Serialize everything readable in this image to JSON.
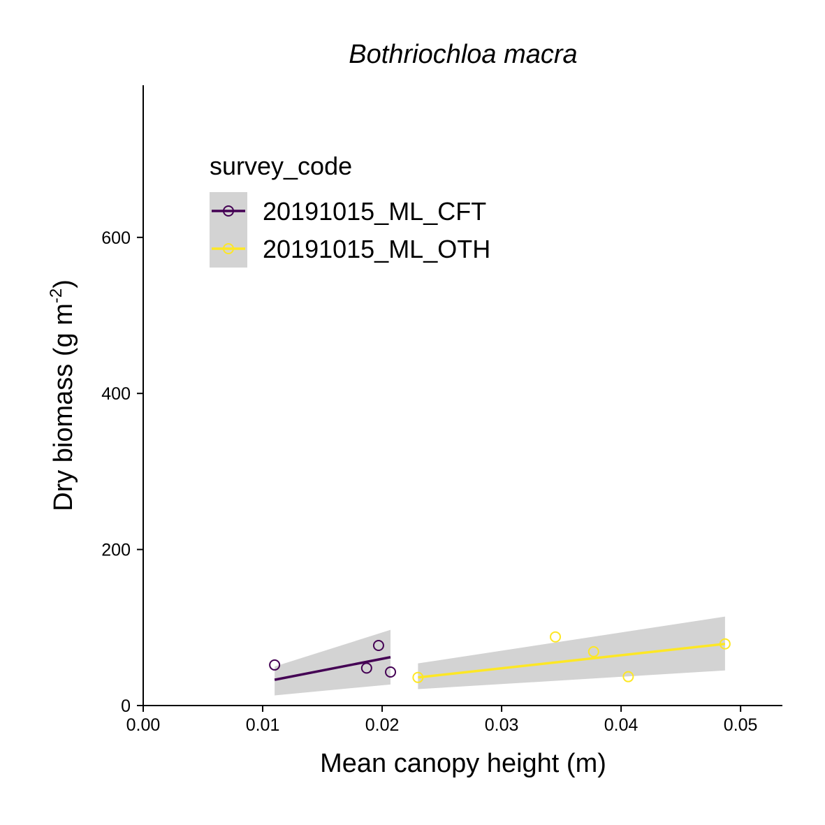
{
  "chart_data": {
    "type": "scatter",
    "title": "Bothriochloa macra",
    "xlabel": "Mean canopy height (m)",
    "ylabel": {
      "main": "Dry biomass (g m",
      "superscript": "-2",
      "close": ")"
    },
    "xlim": [
      0.0,
      0.0535
    ],
    "ylim": [
      0,
      795
    ],
    "x_ticks": [
      0.0,
      0.01,
      0.02,
      0.03,
      0.04,
      0.05
    ],
    "x_tick_labels": [
      "0.00",
      "0.01",
      "0.02",
      "0.03",
      "0.04",
      "0.05"
    ],
    "y_ticks": [
      0,
      200,
      400,
      600
    ],
    "y_tick_labels": [
      "0",
      "200",
      "400",
      "600"
    ],
    "grid": false,
    "legend": {
      "title": "survey_code",
      "placement": "top-left"
    },
    "series": [
      {
        "name": "20191015_ML_CFT",
        "color": "#440154",
        "points": [
          {
            "x": 0.011,
            "y": 52
          },
          {
            "x": 0.0187,
            "y": 48
          },
          {
            "x": 0.0197,
            "y": 77
          },
          {
            "x": 0.0207,
            "y": 43
          }
        ],
        "fit": {
          "x": [
            0.011,
            0.0207
          ],
          "y": [
            33,
            62
          ],
          "lower": [
            13,
            27
          ],
          "upper": [
            50,
            97
          ]
        }
      },
      {
        "name": "20191015_ML_OTH",
        "color": "#FDE725",
        "points": [
          {
            "x": 0.023,
            "y": 36
          },
          {
            "x": 0.0345,
            "y": 88
          },
          {
            "x": 0.0377,
            "y": 69
          },
          {
            "x": 0.0406,
            "y": 37
          },
          {
            "x": 0.0487,
            "y": 79
          }
        ],
        "fit": {
          "x": [
            0.023,
            0.0487
          ],
          "y": [
            36,
            79
          ],
          "lower": [
            21,
            45
          ],
          "upper": [
            54,
            114
          ]
        }
      }
    ]
  }
}
